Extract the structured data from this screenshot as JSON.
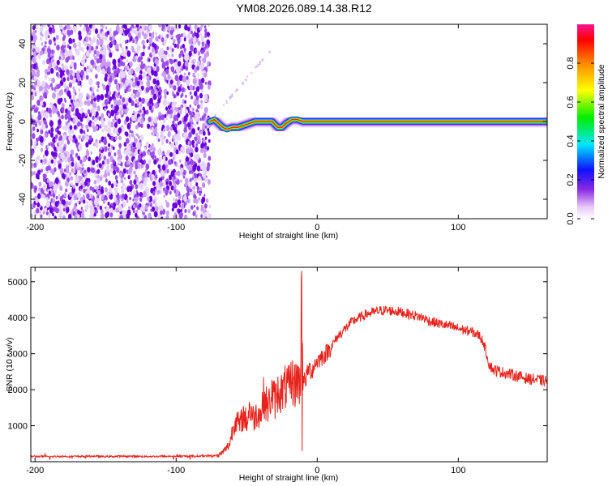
{
  "title": "YM08.2026.089.14.38.R12",
  "spectrogram": {
    "type": "heatmap",
    "xlabel": "Height of straight line (km)",
    "ylabel": "Frequency (Hz)",
    "xlim": [
      -203,
      163
    ],
    "ylim": [
      -50,
      50
    ],
    "xticks": [
      -200,
      -100,
      0,
      100
    ],
    "yticks": [
      -40,
      -20,
      0,
      20,
      40
    ],
    "noise_region_end_km": -76,
    "signal_start_km": -76,
    "trace_frequency_hz": 0,
    "trace_wobble": [
      {
        "x": -76,
        "y": 0
      },
      {
        "x": -73,
        "y": 1
      },
      {
        "x": -70,
        "y": -1
      },
      {
        "x": -67,
        "y": -3
      },
      {
        "x": -64,
        "y": -4
      },
      {
        "x": -60,
        "y": -3
      },
      {
        "x": -56,
        "y": -3
      },
      {
        "x": -52,
        "y": -2
      },
      {
        "x": -48,
        "y": -1
      },
      {
        "x": -44,
        "y": 0
      },
      {
        "x": -40,
        "y": 0
      },
      {
        "x": -36,
        "y": 0
      },
      {
        "x": -32,
        "y": 0
      },
      {
        "x": -28,
        "y": -3
      },
      {
        "x": -25,
        "y": -3
      },
      {
        "x": -22,
        "y": -1
      },
      {
        "x": -18,
        "y": 1
      },
      {
        "x": -14,
        "y": 1
      },
      {
        "x": -10,
        "y": 0
      },
      {
        "x": 0,
        "y": 0
      },
      {
        "x": 163,
        "y": 0
      }
    ]
  },
  "colorbar": {
    "label": "Normalized spectral amplitude",
    "ticks": [
      "0.0",
      "0.2",
      "0.4",
      "0.6",
      "0.8"
    ],
    "tick_values": [
      0,
      0.2,
      0.4,
      0.6,
      0.8
    ],
    "range": [
      0,
      1
    ]
  },
  "chart_data": {
    "type": "line",
    "title": "",
    "xlabel": "Height of straight line (km)",
    "ylabel": "SNR (10 * v/v)",
    "xlim": [
      -203,
      163
    ],
    "ylim": [
      0,
      5400
    ],
    "xticks": [
      -200,
      -100,
      0,
      100
    ],
    "yticks": [
      1000,
      2000,
      3000,
      4000,
      5000
    ],
    "series": [
      {
        "name": "SNR",
        "color": "#e8221b",
        "x": [
          -203,
          -190,
          -180,
          -170,
          -160,
          -150,
          -140,
          -130,
          -120,
          -110,
          -100,
          -90,
          -80,
          -70,
          -66,
          -62,
          -60,
          -58,
          -55,
          -52,
          -50,
          -48,
          -45,
          -42,
          -40,
          -38,
          -35,
          -32,
          -30,
          -27,
          -25,
          -22,
          -20,
          -18,
          -16,
          -14,
          -12,
          -11,
          -10,
          -8,
          -6,
          -4,
          -2,
          0,
          3,
          6,
          10,
          15,
          20,
          25,
          30,
          35,
          40,
          45,
          50,
          55,
          60,
          65,
          70,
          75,
          80,
          85,
          90,
          95,
          100,
          105,
          110,
          115,
          118,
          120,
          122,
          125,
          130,
          135,
          140,
          145,
          150,
          155,
          160,
          163
        ],
        "values": [
          150,
          140,
          150,
          145,
          155,
          140,
          150,
          150,
          145,
          150,
          150,
          150,
          160,
          170,
          300,
          500,
          900,
          1200,
          1000,
          1300,
          1100,
          1500,
          1200,
          1400,
          1300,
          1800,
          1500,
          1900,
          1700,
          2000,
          1900,
          2100,
          2000,
          2300,
          2100,
          2400,
          2000,
          5300,
          2200,
          2300,
          2600,
          2500,
          2700,
          2800,
          2900,
          3000,
          3200,
          3500,
          3700,
          3900,
          4000,
          4100,
          4150,
          4200,
          4200,
          4180,
          4150,
          4100,
          4050,
          4000,
          3900,
          3850,
          3800,
          3750,
          3700,
          3650,
          3600,
          3500,
          3300,
          3000,
          2700,
          2550,
          2500,
          2450,
          2400,
          2350,
          2300,
          2280,
          2250,
          2250
        ]
      }
    ]
  }
}
